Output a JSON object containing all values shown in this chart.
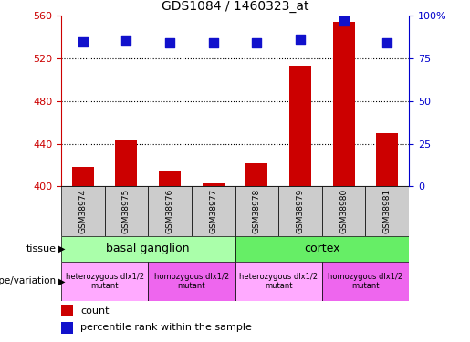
{
  "title": "GDS1084 / 1460323_at",
  "samples": [
    "GSM38974",
    "GSM38975",
    "GSM38976",
    "GSM38977",
    "GSM38978",
    "GSM38979",
    "GSM38980",
    "GSM38981"
  ],
  "counts": [
    418,
    443,
    415,
    403,
    422,
    513,
    554,
    450
  ],
  "dot_y_values": [
    535,
    537,
    534,
    534,
    534,
    538,
    555,
    534
  ],
  "ylim_left": [
    400,
    560
  ],
  "ylim_right": [
    0,
    100
  ],
  "yticks_left": [
    400,
    440,
    480,
    520,
    560
  ],
  "yticks_right": [
    0,
    25,
    50,
    75,
    100
  ],
  "ytick_right_labels": [
    "0",
    "25",
    "50",
    "75",
    "100%"
  ],
  "bar_color": "#cc0000",
  "dot_color": "#1111cc",
  "tissue_groups": [
    {
      "label": "basal ganglion",
      "start": 0,
      "end": 3,
      "color": "#aaffaa"
    },
    {
      "label": "cortex",
      "start": 4,
      "end": 7,
      "color": "#66ee66"
    }
  ],
  "genotype_groups": [
    {
      "label": "heterozygous dlx1/2\nmutant",
      "start": 0,
      "end": 1,
      "color": "#ffaaff"
    },
    {
      "label": "homozygous dlx1/2\nmutant",
      "start": 2,
      "end": 3,
      "color": "#ee66ee"
    },
    {
      "label": "heterozygous dlx1/2\nmutant",
      "start": 4,
      "end": 5,
      "color": "#ffaaff"
    },
    {
      "label": "homozygous dlx1/2\nmutant",
      "start": 6,
      "end": 7,
      "color": "#ee66ee"
    }
  ],
  "tissue_label": "tissue",
  "genotype_label": "genotype/variation",
  "legend_count_label": "count",
  "legend_percentile_label": "percentile rank within the sample",
  "bar_width": 0.5,
  "dot_size": 55,
  "left_axis_color": "#cc0000",
  "right_axis_color": "#0000cc",
  "sample_box_color": "#cccccc",
  "fig_width": 5.15,
  "fig_height": 3.75,
  "dpi": 100
}
